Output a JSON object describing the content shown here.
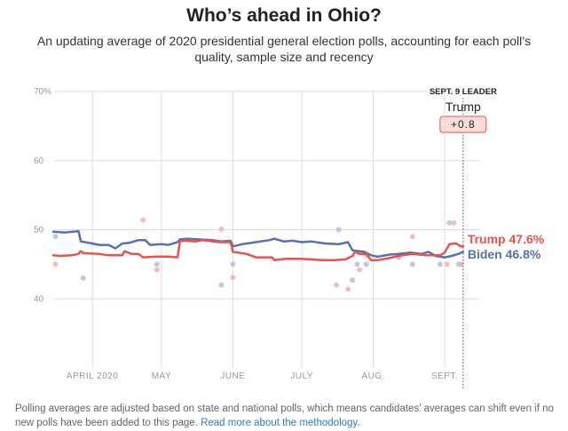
{
  "title": "Who’s ahead in Ohio?",
  "subtitle": "An updating average of 2020 presidential general election polls, accounting for each poll’s quality, sample size and recency",
  "leader_box": {
    "heading": "SEPT. 9 LEADER",
    "name": "Trump",
    "margin": "+0.8"
  },
  "colors": {
    "trump": "#e9534d",
    "biden": "#5a6fb2",
    "trump_dot": "#f4b7b5",
    "biden_dot": "#b9c1e0",
    "grid": "#dddddd",
    "axis_text": "#999999"
  },
  "footnote": {
    "text": "Polling averages are adjusted based on state and national polls, which means candidates’ averages can shift even if no new polls have been added to this page. ",
    "link": "Read more about the methodology",
    "end": "."
  },
  "chart_data": {
    "type": "line",
    "title": "Who’s ahead in Ohio?",
    "x_ticks": [
      {
        "day": 17,
        "label": "APRIL 2020"
      },
      {
        "day": 47,
        "label": "MAY"
      },
      {
        "day": 78,
        "label": "JUNE"
      },
      {
        "day": 108,
        "label": "JULY"
      },
      {
        "day": 139,
        "label": "AUG."
      },
      {
        "day": 170,
        "label": "SEPT."
      }
    ],
    "x_start": "2020-03-15",
    "xlim": [
      0,
      185
    ],
    "y_ticks": [
      40,
      50,
      60,
      70
    ],
    "y_tick_labels": [
      "40",
      "50",
      "60",
      "70%"
    ],
    "ylim": [
      30,
      70
    ],
    "grid": true,
    "current_day": 178,
    "series": [
      {
        "name": "Trump",
        "end_label": "Trump 47.6%",
        "color": "#e9534d",
        "values": [
          [
            0,
            46.3
          ],
          [
            3,
            46.2
          ],
          [
            8,
            46.3
          ],
          [
            11,
            46.5
          ],
          [
            12,
            46.9
          ],
          [
            13,
            46.6
          ],
          [
            20,
            46.5
          ],
          [
            24,
            46.3
          ],
          [
            30,
            46.3
          ],
          [
            31,
            46.9
          ],
          [
            34,
            46.5
          ],
          [
            37,
            46.5
          ],
          [
            39,
            46.0
          ],
          [
            45,
            46.1
          ],
          [
            50,
            46.1
          ],
          [
            54,
            46.0
          ],
          [
            55,
            48.3
          ],
          [
            57,
            48.4
          ],
          [
            62,
            48.3
          ],
          [
            65,
            48.5
          ],
          [
            72,
            48.2
          ],
          [
            77,
            48.2
          ],
          [
            78,
            46.8
          ],
          [
            84,
            46.5
          ],
          [
            88,
            46.0
          ],
          [
            95,
            46.0
          ],
          [
            96,
            45.6
          ],
          [
            101,
            45.8
          ],
          [
            107,
            45.8
          ],
          [
            112,
            45.7
          ],
          [
            117,
            45.6
          ],
          [
            122,
            45.6
          ],
          [
            127,
            45.7
          ],
          [
            130,
            46.2
          ],
          [
            131,
            46.8
          ],
          [
            133,
            46.5
          ],
          [
            136,
            46.5
          ],
          [
            138,
            45.6
          ],
          [
            141,
            45.6
          ],
          [
            146,
            45.9
          ],
          [
            150,
            46.2
          ],
          [
            156,
            46.5
          ],
          [
            162,
            46.3
          ],
          [
            168,
            46.3
          ],
          [
            170,
            46.7
          ],
          [
            172,
            47.9
          ],
          [
            175,
            48.0
          ],
          [
            177,
            47.6
          ],
          [
            178,
            47.6
          ]
        ]
      },
      {
        "name": "Biden",
        "end_label": "Biden 46.8%",
        "color": "#5a6fb2",
        "values": [
          [
            0,
            49.7
          ],
          [
            5,
            49.6
          ],
          [
            11,
            49.8
          ],
          [
            12,
            48.3
          ],
          [
            17,
            48.0
          ],
          [
            20,
            47.8
          ],
          [
            24,
            47.8
          ],
          [
            27,
            47.3
          ],
          [
            30,
            48.0
          ],
          [
            33,
            48.1
          ],
          [
            37,
            48.5
          ],
          [
            40,
            48.5
          ],
          [
            42,
            47.8
          ],
          [
            47,
            47.9
          ],
          [
            50,
            47.8
          ],
          [
            54,
            48.2
          ],
          [
            55,
            48.6
          ],
          [
            58,
            48.7
          ],
          [
            63,
            48.6
          ],
          [
            69,
            48.5
          ],
          [
            73,
            48.3
          ],
          [
            77,
            48.4
          ],
          [
            78,
            47.6
          ],
          [
            82,
            47.9
          ],
          [
            88,
            48.2
          ],
          [
            94,
            48.5
          ],
          [
            96,
            48.7
          ],
          [
            100,
            48.3
          ],
          [
            104,
            48.4
          ],
          [
            108,
            48.2
          ],
          [
            112,
            48.3
          ],
          [
            118,
            48.0
          ],
          [
            124,
            47.9
          ],
          [
            128,
            48.2
          ],
          [
            130,
            47.0
          ],
          [
            135,
            46.8
          ],
          [
            138,
            46.3
          ],
          [
            141,
            46.1
          ],
          [
            146,
            46.4
          ],
          [
            150,
            46.5
          ],
          [
            155,
            46.7
          ],
          [
            160,
            46.5
          ],
          [
            163,
            46.8
          ],
          [
            166,
            46.2
          ],
          [
            170,
            46.0
          ],
          [
            173,
            46.2
          ],
          [
            176,
            46.5
          ],
          [
            178,
            46.8
          ]
        ]
      }
    ],
    "polls_trump": [
      [
        1,
        45.0
      ],
      [
        39,
        51.4
      ],
      [
        45,
        44.2
      ],
      [
        73,
        50.1
      ],
      [
        78,
        43.1
      ],
      [
        123,
        42.0
      ],
      [
        128,
        41.4
      ],
      [
        133,
        44.2
      ],
      [
        136,
        46.3
      ],
      [
        156,
        49.0
      ],
      [
        171,
        45.0
      ],
      [
        174,
        51.0
      ],
      [
        176,
        45.0
      ]
    ],
    "polls_biden": [
      [
        1,
        49.0
      ],
      [
        13,
        43.0
      ],
      [
        45,
        45.0
      ],
      [
        73,
        42.0
      ],
      [
        78,
        45.0
      ],
      [
        124,
        50.0
      ],
      [
        130,
        42.7
      ],
      [
        132,
        45.0
      ],
      [
        136,
        45.0
      ],
      [
        150,
        46.0
      ],
      [
        156,
        45.0
      ],
      [
        168,
        45.0
      ],
      [
        172,
        51.0
      ],
      [
        177,
        45.0
      ]
    ]
  }
}
